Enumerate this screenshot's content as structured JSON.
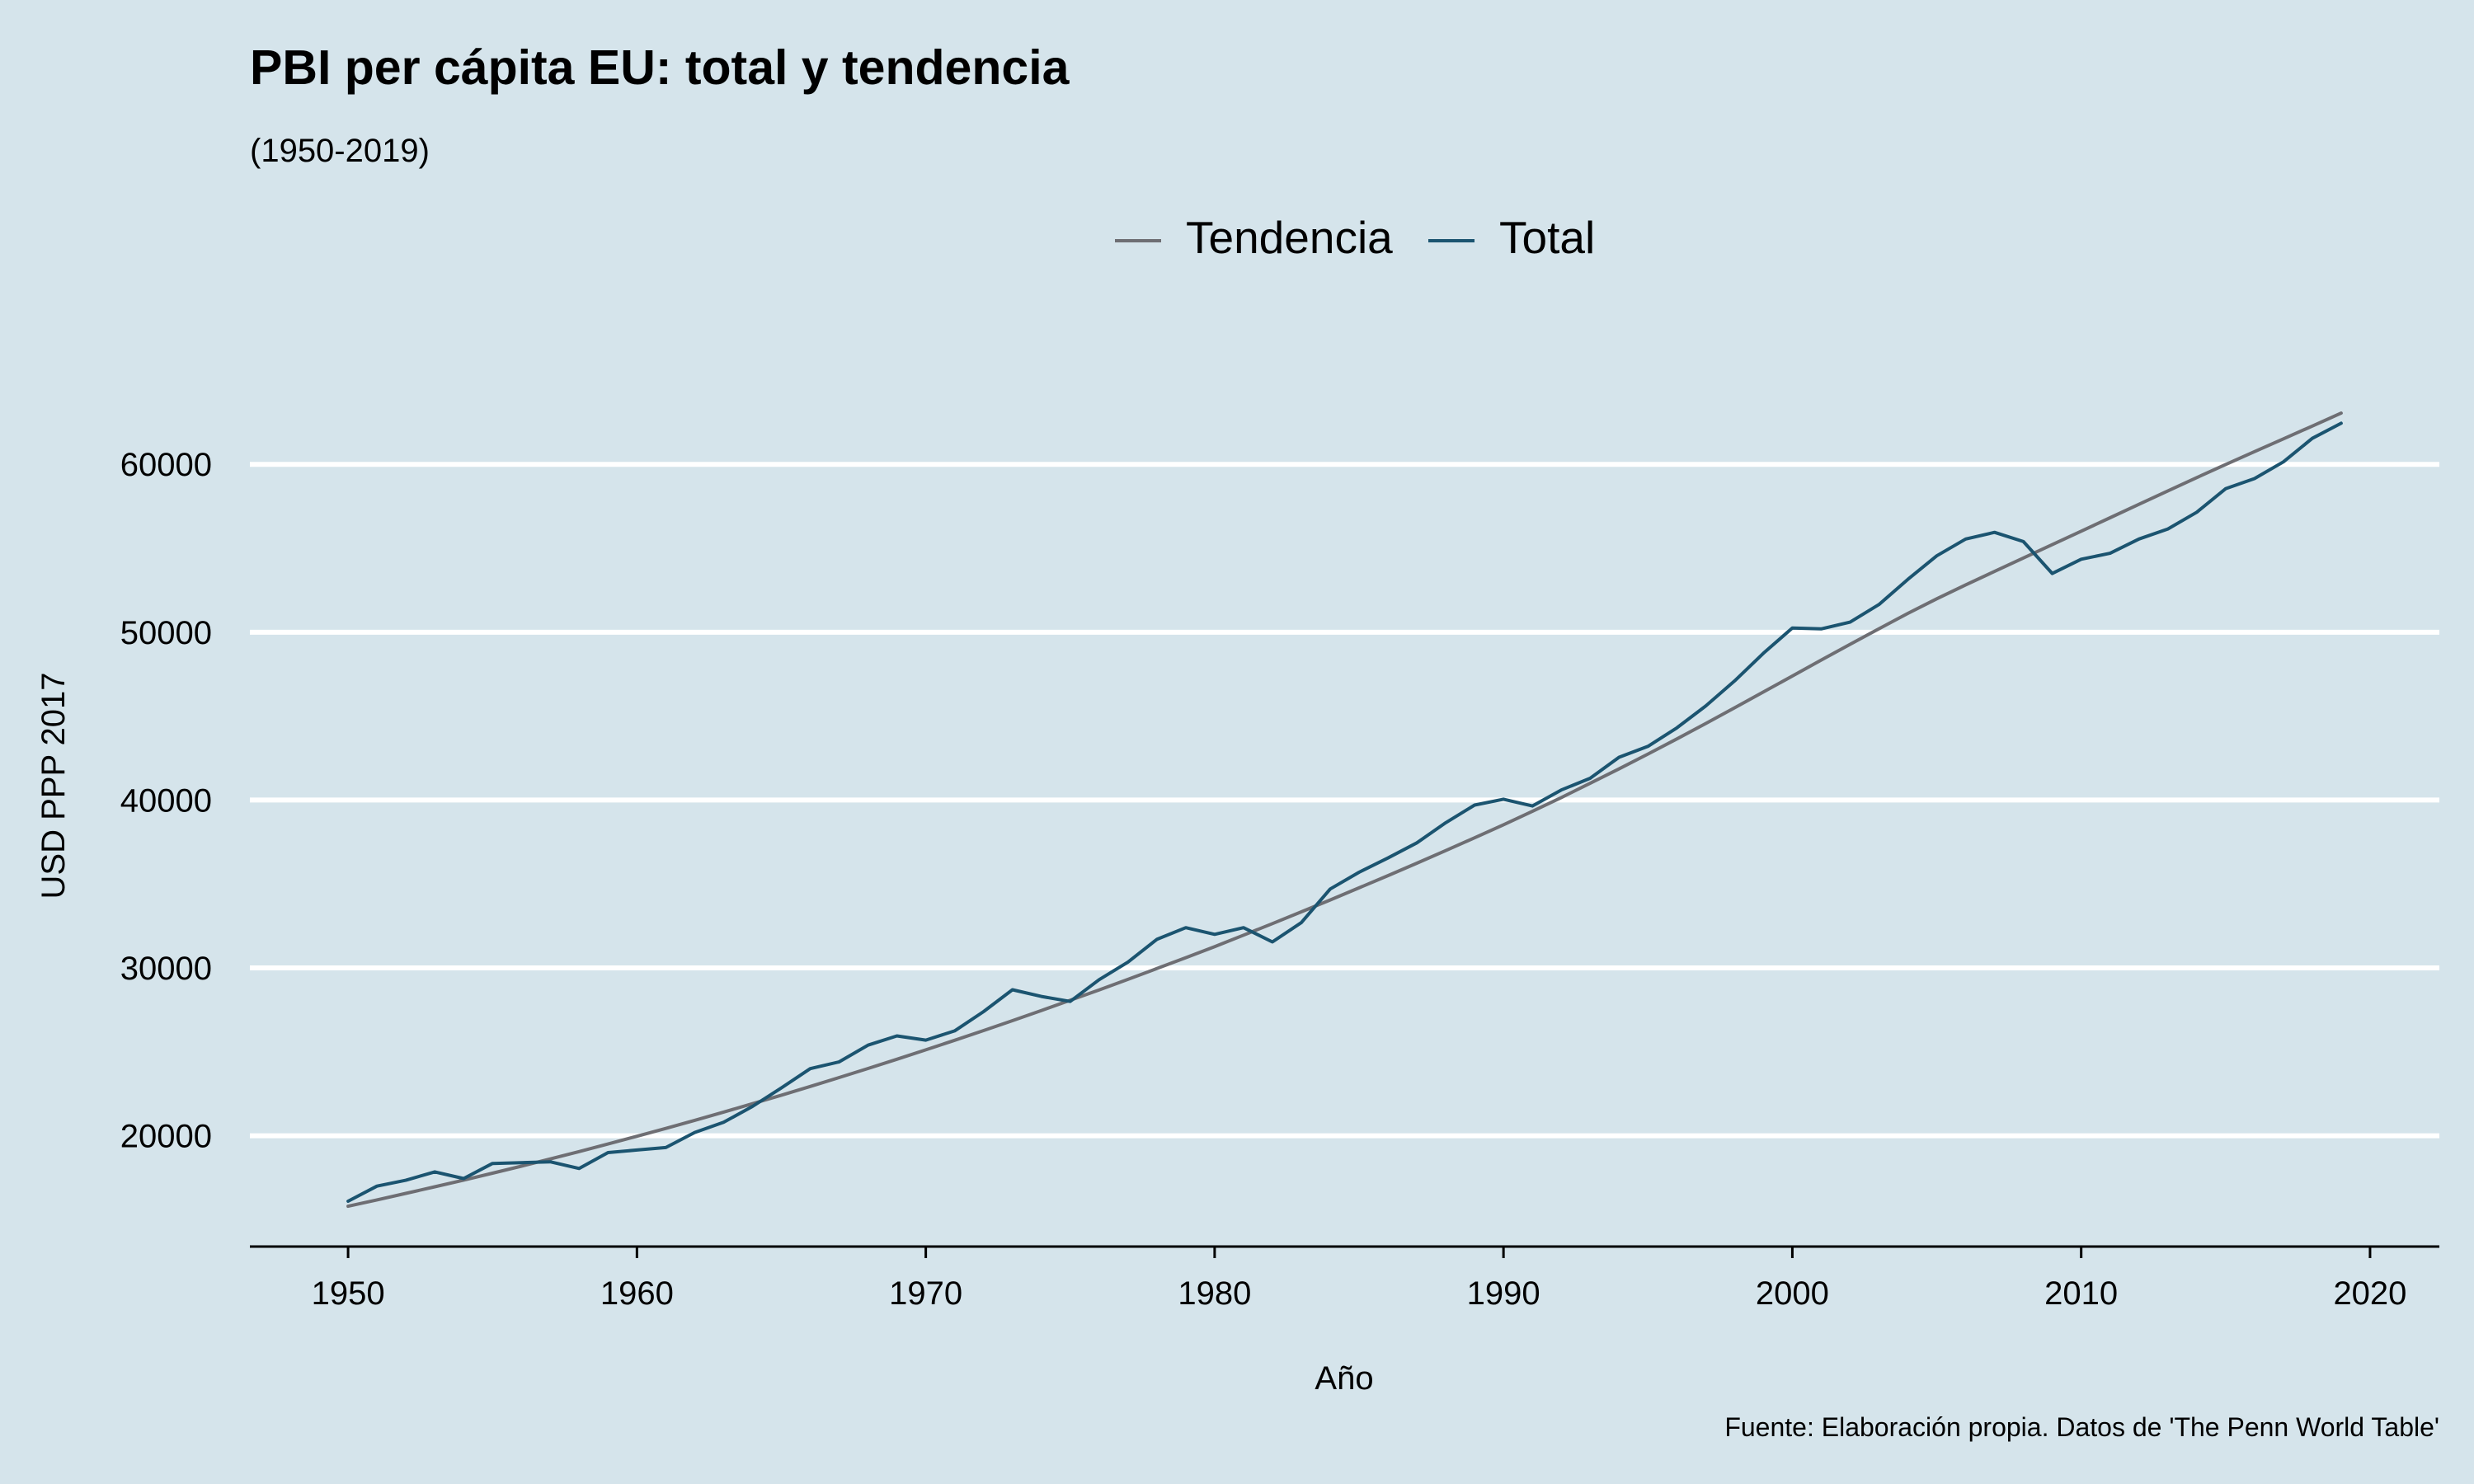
{
  "chart_data": {
    "type": "line",
    "title": "PBI per cápita EU: total y tendencia",
    "subtitle": "(1950-2019)",
    "xlabel": "Año",
    "ylabel": "USD PPP 2017",
    "caption": "Fuente: Elaboración propia. Datos de 'The Penn World Table'",
    "xlim": [
      1946.6,
      2022.4
    ],
    "ylim": [
      13400,
      69000
    ],
    "x_ticks": [
      1950,
      1960,
      1970,
      1980,
      1990,
      2000,
      2010,
      2020
    ],
    "y_ticks": [
      20000,
      30000,
      40000,
      50000,
      60000
    ],
    "grid": "horizontal major only, white",
    "legend_position": "top-center",
    "background_color": "#d5e4eb",
    "x": [
      1950,
      1951,
      1952,
      1953,
      1954,
      1955,
      1956,
      1957,
      1958,
      1959,
      1960,
      1961,
      1962,
      1963,
      1964,
      1965,
      1966,
      1967,
      1968,
      1969,
      1970,
      1971,
      1972,
      1973,
      1974,
      1975,
      1976,
      1977,
      1978,
      1979,
      1980,
      1981,
      1982,
      1983,
      1984,
      1985,
      1986,
      1987,
      1988,
      1989,
      1990,
      1991,
      1992,
      1993,
      1994,
      1995,
      1996,
      1997,
      1998,
      1999,
      2000,
      2001,
      2002,
      2003,
      2004,
      2005,
      2006,
      2007,
      2008,
      2009,
      2010,
      2011,
      2012,
      2013,
      2014,
      2015,
      2016,
      2017,
      2018,
      2019
    ],
    "series": [
      {
        "name": "Tendencia",
        "color": "#6e6e73",
        "values": [
          15800,
          16180,
          16570,
          16960,
          17360,
          17770,
          18190,
          18620,
          19060,
          19510,
          19970,
          20440,
          20920,
          21410,
          21910,
          22420,
          22940,
          23470,
          24010,
          24560,
          25120,
          25690,
          26270,
          26860,
          27460,
          28070,
          28690,
          29320,
          29960,
          30610,
          31270,
          31950,
          32640,
          33340,
          34050,
          34770,
          35500,
          36240,
          36990,
          37750,
          38530,
          39330,
          40150,
          41000,
          41860,
          42740,
          43640,
          44560,
          45500,
          46440,
          47390,
          48340,
          49280,
          50210,
          51120,
          51990,
          52820,
          53620,
          54420,
          55220,
          56020,
          56820,
          57620,
          58420,
          59210,
          59990,
          60760,
          61520,
          62280,
          63050
        ]
      },
      {
        "name": "Total",
        "color": "#1b5470",
        "values": [
          16100,
          17000,
          17350,
          17850,
          17450,
          18350,
          18400,
          18450,
          18050,
          19000,
          19150,
          19300,
          20200,
          20800,
          21750,
          22850,
          24000,
          24400,
          25400,
          25950,
          25700,
          26250,
          27400,
          28700,
          28300,
          28000,
          29300,
          30350,
          31700,
          32400,
          32000,
          32400,
          31550,
          32700,
          34700,
          35700,
          36550,
          37450,
          38650,
          39700,
          40050,
          39650,
          40600,
          41300,
          42550,
          43200,
          44300,
          45600,
          47100,
          48750,
          50250,
          50200,
          50600,
          51650,
          53150,
          54550,
          55550,
          55950,
          55400,
          53500,
          54350,
          54700,
          55550,
          56150,
          57150,
          58550,
          59150,
          60150,
          61550,
          62450
        ]
      }
    ]
  }
}
